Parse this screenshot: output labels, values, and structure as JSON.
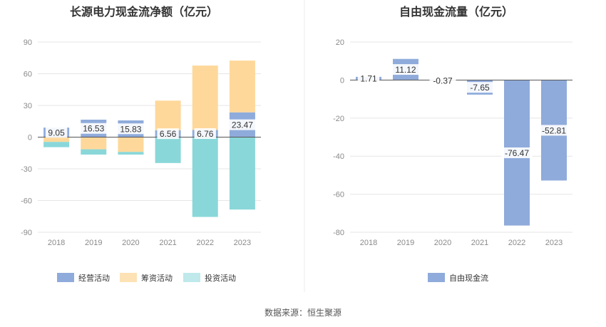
{
  "source_label": "数据来源：恒生聚源",
  "chart_data": [
    {
      "type": "bar",
      "stacked": true,
      "title": "长源电力现金流净额（亿元）",
      "categories": [
        "2018",
        "2019",
        "2020",
        "2021",
        "2022",
        "2023"
      ],
      "ylim": [
        -90,
        90
      ],
      "yticks": [
        -90,
        -60,
        -30,
        0,
        30,
        60,
        90
      ],
      "grid": true,
      "legend_position": "bottom",
      "series": [
        {
          "name": "经营活动",
          "color": "#8fabdb",
          "values": [
            9.05,
            16.53,
            15.83,
            6.56,
            6.76,
            23.47
          ],
          "labels": [
            "9.05",
            "16.53",
            "15.83",
            "6.56",
            "6.76",
            "23.47"
          ]
        },
        {
          "name": "筹资活动",
          "color": "#fed89b",
          "values": [
            -4.5,
            -11.5,
            -14,
            28,
            61,
            49
          ]
        },
        {
          "name": "投资活动",
          "color": "#8ad7d9",
          "values": [
            -5,
            -5,
            -2.5,
            -24.5,
            -75.5,
            -68.5
          ]
        }
      ],
      "legend_colors": [
        "#8fabdb",
        "#fde2b5",
        "#bfe9ea"
      ]
    },
    {
      "type": "bar",
      "title": "自由现金流量（亿元）",
      "categories": [
        "2018",
        "2019",
        "2020",
        "2021",
        "2022",
        "2023"
      ],
      "ylim": [
        -80,
        20
      ],
      "yticks": [
        -80,
        -60,
        -40,
        -20,
        0,
        20
      ],
      "grid": true,
      "legend_position": "bottom",
      "series": [
        {
          "name": "自由现金流",
          "color": "#8fabdb",
          "values": [
            1.71,
            11.12,
            -0.37,
            -7.65,
            -76.47,
            -52.81
          ],
          "labels": [
            "1.71",
            "11.12",
            "-0.37",
            "-7.65",
            "-76.47",
            "-52.81"
          ]
        }
      ]
    }
  ]
}
